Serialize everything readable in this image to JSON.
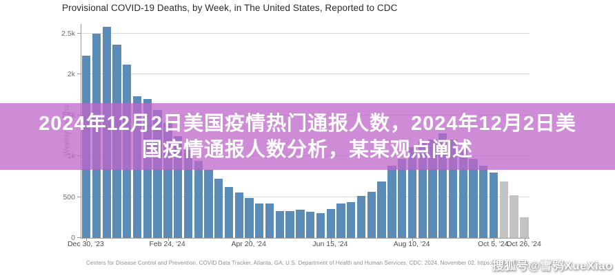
{
  "chart": {
    "title": "Provisional COVID-19 Deaths, by Week, in The United States, Reported to CDC",
    "y_axis_label": "Weekly Deaths"
  },
  "chart_data": {
    "type": "bar",
    "title": "Provisional COVID-19 Deaths, by Week, in The United States, Reported to CDC",
    "xlabel": "",
    "ylabel": "Weekly Deaths",
    "ylim": [
      0,
      2600
    ],
    "grid": "horizontal",
    "legend": "none",
    "n_bars": 44,
    "x_unit": "week",
    "values": [
      2230,
      2500,
      2580,
      2360,
      2120,
      1730,
      1700,
      1560,
      1400,
      1240,
      1075,
      940,
      830,
      720,
      625,
      555,
      487,
      423,
      423,
      330,
      330,
      345,
      317,
      302,
      350,
      423,
      434,
      513,
      563,
      690,
      880,
      970,
      1110,
      1175,
      1200,
      1275,
      1200,
      1090,
      970,
      880,
      800,
      690,
      525,
      250
    ],
    "provisional_from_index": 41,
    "colors": {
      "reported": "#5b8cb8",
      "provisional": "#c3c3c3",
      "gridline": "#d9d9d9",
      "axis": "#999999"
    },
    "y_ticks": [
      {
        "value": 0,
        "label": "0"
      },
      {
        "value": 500,
        "label": "500"
      },
      {
        "value": 1000,
        "label": "1k"
      },
      {
        "value": 1500,
        "label": "1.5k"
      },
      {
        "value": 2000,
        "label": "2k"
      },
      {
        "value": 2500,
        "label": "2.5k"
      }
    ],
    "x_ticks": [
      {
        "bar_index": 0,
        "label": "Dec 30, '23"
      },
      {
        "bar_index": 8,
        "label": "Feb 24, '24"
      },
      {
        "bar_index": 16,
        "label": "Apr 20, '24"
      },
      {
        "bar_index": 24,
        "label": "Jun 15, '24"
      },
      {
        "bar_index": 32,
        "label": "Aug 10, '24"
      },
      {
        "bar_index": 40,
        "label": "Oct 5, '24"
      },
      {
        "bar_index": 43,
        "label": "Oct 26, '24"
      }
    ]
  },
  "overlay": {
    "line1": "2024年12月2日美国疫情热门通报人数，2024年12月2日美",
    "line2": "国疫情通报人数分析，某某观点阐述",
    "bg_color": "rgba(189,102,201,0.75)",
    "text_color": "#ffffff"
  },
  "footer": {
    "attribution": "Centers for Disease Control and Prevention. COVID Data Tracker. Atlanta, GA: U.S. Department of Health and Human Services, CDC; 2024, November 02. https://covid.cdc.gov"
  },
  "watermark": {
    "text": "搜狐号@雪鸮XueXiao"
  }
}
